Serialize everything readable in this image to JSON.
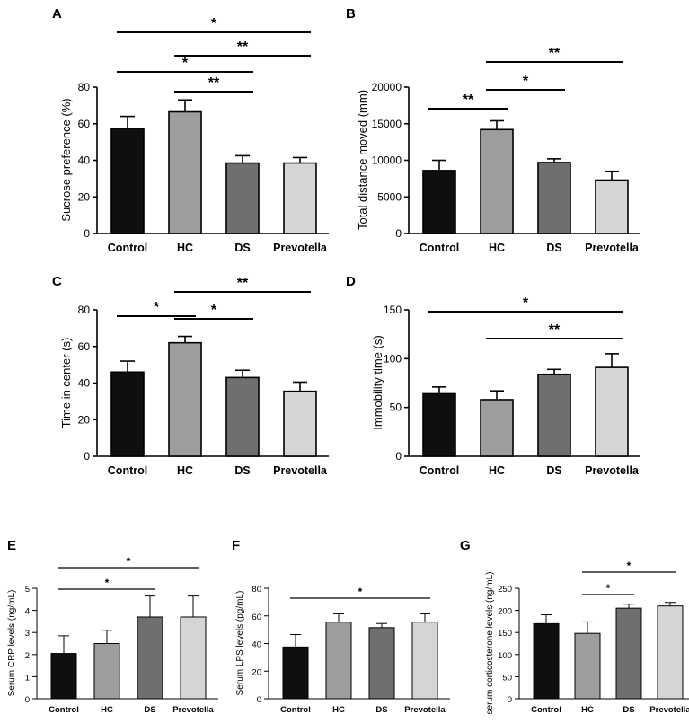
{
  "chart_data": [
    {
      "panel": "A",
      "type": "bar",
      "categories": [
        "Control",
        "HC",
        "DS",
        "Prevotella"
      ],
      "values": [
        57.5,
        66.5,
        38.5,
        38.5
      ],
      "errors": [
        6.5,
        6.5,
        4.0,
        3.0
      ],
      "colors": [
        "#0f0f0f",
        "#9d9d9d",
        "#6f6f6f",
        "#d5d5d5"
      ],
      "ylabel": "Sucrose preference (%)",
      "ylim": [
        0,
        80
      ],
      "yticks": [
        "0",
        "20",
        "40",
        "60",
        "80"
      ],
      "significance": [
        {
          "from": 0,
          "to": 3,
          "label": "*"
        },
        {
          "from": 1,
          "to": 3,
          "label": "**"
        },
        {
          "from": 0,
          "to": 2,
          "label": "*"
        },
        {
          "from": 1,
          "to": 2,
          "label": "**"
        }
      ]
    },
    {
      "panel": "B",
      "type": "bar",
      "categories": [
        "Control",
        "HC",
        "DS",
        "Prevotella"
      ],
      "values": [
        8600,
        14200,
        9700,
        7300
      ],
      "errors": [
        1400,
        1200,
        500,
        1200
      ],
      "colors": [
        "#0f0f0f",
        "#9d9d9d",
        "#6f6f6f",
        "#d5d5d5"
      ],
      "ylabel": "Total distance moved (mm)",
      "ylim": [
        0,
        20000
      ],
      "yticks": [
        "0",
        "5000",
        "10000",
        "15000",
        "20000"
      ],
      "significance": [
        {
          "from": 1,
          "to": 3,
          "label": "**"
        },
        {
          "from": 0,
          "to": 1,
          "label": "**"
        },
        {
          "from": 1,
          "to": 2,
          "label": "*"
        }
      ]
    },
    {
      "panel": "C",
      "type": "bar",
      "categories": [
        "Control",
        "HC",
        "DS",
        "Prevotella"
      ],
      "values": [
        46,
        62,
        43,
        35.5
      ],
      "errors": [
        6,
        3.5,
        4,
        5
      ],
      "colors": [
        "#0f0f0f",
        "#9d9d9d",
        "#6f6f6f",
        "#d5d5d5"
      ],
      "ylabel": "Time in center (s)",
      "ylim": [
        0,
        80
      ],
      "yticks": [
        "0",
        "20",
        "40",
        "60",
        "80"
      ],
      "significance": [
        {
          "from": 1,
          "to": 3,
          "label": "**"
        },
        {
          "from": 0,
          "to": 1,
          "label": "*"
        },
        {
          "from": 1,
          "to": 2,
          "label": "*"
        }
      ]
    },
    {
      "panel": "D",
      "type": "bar",
      "categories": [
        "Control",
        "HC",
        "DS",
        "Prevotella"
      ],
      "values": [
        64,
        58,
        84,
        91
      ],
      "errors": [
        7,
        9,
        5,
        14
      ],
      "colors": [
        "#0f0f0f",
        "#9d9d9d",
        "#6f6f6f",
        "#d5d5d5"
      ],
      "ylabel": "Immobility time (s)",
      "ylim": [
        0,
        150
      ],
      "yticks": [
        "0",
        "50",
        "100",
        "150"
      ],
      "significance": [
        {
          "from": 0,
          "to": 3,
          "label": "*"
        },
        {
          "from": 1,
          "to": 3,
          "label": "**"
        }
      ]
    },
    {
      "panel": "E",
      "type": "bar",
      "categories": [
        "Control",
        "HC",
        "DS",
        "Prevotella"
      ],
      "values": [
        2.05,
        2.5,
        3.7,
        3.7
      ],
      "errors": [
        0.8,
        0.6,
        0.95,
        0.95
      ],
      "colors": [
        "#0f0f0f",
        "#9d9d9d",
        "#6f6f6f",
        "#d5d5d5"
      ],
      "ylabel": "Serum CRP levels (ng/mL)",
      "ylim": [
        0,
        5
      ],
      "yticks": [
        "0",
        "1",
        "2",
        "3",
        "4",
        "5"
      ],
      "significance": [
        {
          "from": 0,
          "to": 3,
          "label": "*"
        },
        {
          "from": 0,
          "to": 2,
          "label": "*"
        }
      ]
    },
    {
      "panel": "F",
      "type": "bar",
      "categories": [
        "Control",
        "HC",
        "DS",
        "Prevotella"
      ],
      "values": [
        37.5,
        55.5,
        51.5,
        55.5
      ],
      "errors": [
        9,
        6,
        3,
        6
      ],
      "colors": [
        "#0f0f0f",
        "#9d9d9d",
        "#6f6f6f",
        "#d5d5d5"
      ],
      "ylabel": "Serum LPS levels (pg/mL)",
      "ylim": [
        0,
        80
      ],
      "yticks": [
        "0",
        "20",
        "40",
        "60",
        "80"
      ],
      "significance": [
        {
          "from": 0,
          "to": 3,
          "label": "*"
        }
      ]
    },
    {
      "panel": "G",
      "type": "bar",
      "categories": [
        "Control",
        "HC",
        "DS",
        "Prevotella"
      ],
      "values": [
        170,
        148,
        205,
        210
      ],
      "errors": [
        20,
        26,
        9,
        8
      ],
      "colors": [
        "#0f0f0f",
        "#9d9d9d",
        "#6f6f6f",
        "#d5d5d5"
      ],
      "ylabel": "serum corticosterone levels (ng/mL)",
      "ylim": [
        0,
        250
      ],
      "yticks": [
        "0",
        "50",
        "100",
        "150",
        "200",
        "250"
      ],
      "significance": [
        {
          "from": 1,
          "to": 3,
          "label": "*"
        },
        {
          "from": 1,
          "to": 2,
          "label": "*"
        }
      ]
    }
  ]
}
